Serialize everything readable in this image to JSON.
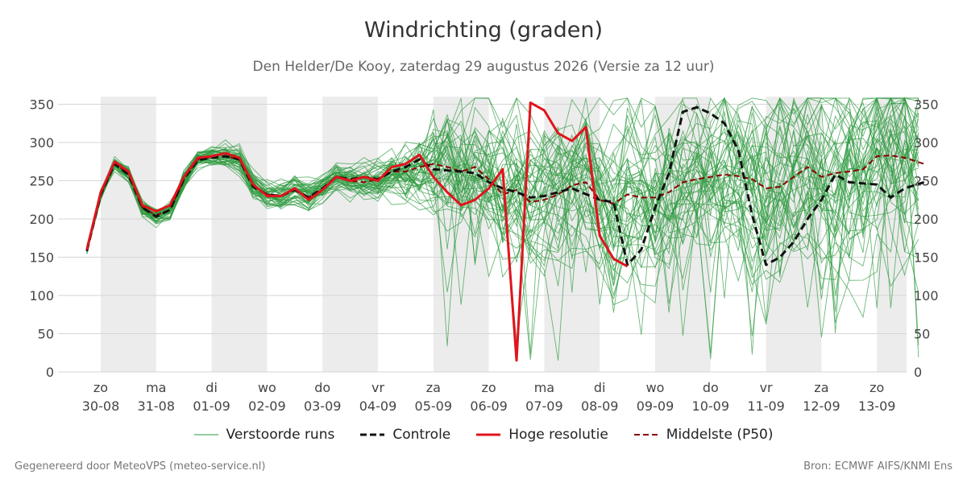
{
  "header": {
    "title": "Windrichting (graden)",
    "subtitle": "Den Helder/De Kooy, zaterdag 29 augustus 2026 (Versie za 12 uur)"
  },
  "footer": {
    "left": "Gegenereerd door MeteoVPS (meteo-service.nl)",
    "right": "Bron: ECMWF AIFS/KNMI Ens"
  },
  "legend": [
    {
      "label": "Verstoorde runs",
      "color": "#2e9a3e",
      "style": "thin"
    },
    {
      "label": "Controle",
      "color": "#111111",
      "style": "dashed"
    },
    {
      "label": "Hoge resolutie",
      "color": "#e0141c",
      "style": "solid"
    },
    {
      "label": "Middelste (P50)",
      "color": "#8b0000",
      "style": "dashed"
    }
  ],
  "chart_data": {
    "type": "line",
    "ylim": [
      0,
      360
    ],
    "yticks": [
      0,
      50,
      100,
      150,
      200,
      250,
      300,
      350
    ],
    "xlim": [
      -0.25,
      14.85
    ],
    "x_unit": "days since 2026-08-30",
    "x_ticks": [
      {
        "day": "zo",
        "date": "30-08"
      },
      {
        "day": "ma",
        "date": "31-08"
      },
      {
        "day": "di",
        "date": "01-09"
      },
      {
        "day": "wo",
        "date": "02-09"
      },
      {
        "day": "do",
        "date": "03-09"
      },
      {
        "day": "vr",
        "date": "04-09"
      },
      {
        "day": "za",
        "date": "05-09"
      },
      {
        "day": "zo",
        "date": "06-09"
      },
      {
        "day": "ma",
        "date": "07-09"
      },
      {
        "day": "di",
        "date": "08-09"
      },
      {
        "day": "wo",
        "date": "09-09"
      },
      {
        "day": "do",
        "date": "10-09"
      },
      {
        "day": "vr",
        "date": "11-09"
      },
      {
        "day": "za",
        "date": "12-09"
      },
      {
        "day": "zo",
        "date": "13-09"
      }
    ],
    "shaded_days": [
      0,
      2,
      4,
      6,
      8,
      10,
      12,
      14
    ],
    "grid": true,
    "legend_position": "bottom",
    "series": [
      {
        "name": "Hoge resolutie",
        "color": "#e0141c",
        "points": [
          [
            -0.25,
            160
          ],
          [
            0,
            235
          ],
          [
            0.25,
            275
          ],
          [
            0.5,
            262
          ],
          [
            0.75,
            218
          ],
          [
            1,
            210
          ],
          [
            1.25,
            218
          ],
          [
            1.5,
            255
          ],
          [
            1.75,
            280
          ],
          [
            2,
            282
          ],
          [
            2.25,
            286
          ],
          [
            2.5,
            280
          ],
          [
            2.75,
            245
          ],
          [
            3,
            230
          ],
          [
            3.25,
            230
          ],
          [
            3.5,
            240
          ],
          [
            3.75,
            225
          ],
          [
            4,
            238
          ],
          [
            4.25,
            255
          ],
          [
            4.5,
            250
          ],
          [
            4.75,
            255
          ],
          [
            5,
            250
          ],
          [
            5.25,
            268
          ],
          [
            5.5,
            272
          ],
          [
            5.75,
            284
          ],
          [
            6,
            255
          ],
          [
            6.25,
            235
          ],
          [
            6.5,
            218
          ],
          [
            6.75,
            225
          ],
          [
            7,
            240
          ],
          [
            7.25,
            265
          ],
          [
            7.5,
            15
          ],
          [
            7.75,
            352
          ],
          [
            8,
            342
          ],
          [
            8.25,
            312
          ],
          [
            8.5,
            302
          ],
          [
            8.75,
            320
          ],
          [
            9,
            178
          ],
          [
            9.25,
            148
          ],
          [
            9.5,
            138
          ]
        ]
      },
      {
        "name": "Controle",
        "color": "#111111",
        "points": [
          [
            -0.25,
            158
          ],
          [
            0,
            232
          ],
          [
            0.25,
            272
          ],
          [
            0.5,
            258
          ],
          [
            0.75,
            215
          ],
          [
            1,
            203
          ],
          [
            1.25,
            212
          ],
          [
            1.5,
            252
          ],
          [
            1.75,
            277
          ],
          [
            2,
            280
          ],
          [
            2.25,
            282
          ],
          [
            2.5,
            278
          ],
          [
            2.75,
            242
          ],
          [
            3,
            232
          ],
          [
            3.25,
            230
          ],
          [
            3.5,
            238
          ],
          [
            3.75,
            228
          ],
          [
            4,
            240
          ],
          [
            4.25,
            255
          ],
          [
            4.5,
            252
          ],
          [
            4.75,
            255
          ],
          [
            5,
            252
          ],
          [
            5.25,
            262
          ],
          [
            5.5,
            268
          ],
          [
            5.75,
            278
          ],
          [
            6,
            265
          ],
          [
            6.5,
            262
          ],
          [
            6.75,
            260
          ],
          [
            7,
            248
          ],
          [
            7.25,
            240
          ],
          [
            7.5,
            235
          ],
          [
            7.75,
            228
          ],
          [
            8,
            230
          ],
          [
            8.5,
            240
          ],
          [
            9,
            225
          ],
          [
            9.25,
            222
          ],
          [
            9.5,
            140
          ],
          [
            9.75,
            160
          ],
          [
            10,
            215
          ],
          [
            10.25,
            260
          ],
          [
            10.5,
            340
          ],
          [
            10.75,
            346
          ],
          [
            11,
            338
          ],
          [
            11.25,
            325
          ],
          [
            11.5,
            290
          ],
          [
            11.75,
            205
          ],
          [
            12,
            140
          ],
          [
            12.25,
            150
          ],
          [
            12.5,
            170
          ],
          [
            12.75,
            200
          ],
          [
            13,
            225
          ],
          [
            13.25,
            258
          ],
          [
            13.5,
            248
          ],
          [
            14,
            245
          ],
          [
            14.25,
            228
          ],
          [
            14.5,
            240
          ],
          [
            14.85,
            248
          ]
        ]
      },
      {
        "name": "Middelste (P50)",
        "color": "#8b0000",
        "points": [
          [
            -0.25,
            160
          ],
          [
            0,
            232
          ],
          [
            0.25,
            272
          ],
          [
            0.5,
            260
          ],
          [
            0.75,
            215
          ],
          [
            1,
            205
          ],
          [
            1.25,
            212
          ],
          [
            1.5,
            252
          ],
          [
            1.75,
            278
          ],
          [
            2,
            281
          ],
          [
            2.25,
            282
          ],
          [
            2.5,
            278
          ],
          [
            2.75,
            244
          ],
          [
            3,
            232
          ],
          [
            3.25,
            230
          ],
          [
            3.5,
            238
          ],
          [
            3.75,
            228
          ],
          [
            4,
            240
          ],
          [
            4.25,
            255
          ],
          [
            4.5,
            250
          ],
          [
            4.75,
            248
          ],
          [
            5,
            252
          ],
          [
            5.25,
            262
          ],
          [
            5.5,
            262
          ],
          [
            5.75,
            268
          ],
          [
            6,
            272
          ],
          [
            6.25,
            268
          ],
          [
            6.5,
            262
          ],
          [
            6.75,
            268
          ],
          [
            7,
            252
          ],
          [
            7.25,
            232
          ],
          [
            7.5,
            238
          ],
          [
            7.75,
            222
          ],
          [
            8,
            225
          ],
          [
            8.25,
            232
          ],
          [
            8.5,
            244
          ],
          [
            8.75,
            248
          ],
          [
            9,
            225
          ],
          [
            9.25,
            220
          ],
          [
            9.5,
            232
          ],
          [
            9.75,
            228
          ],
          [
            10,
            228
          ],
          [
            10.25,
            235
          ],
          [
            10.5,
            248
          ],
          [
            10.75,
            252
          ],
          [
            11,
            255
          ],
          [
            11.25,
            258
          ],
          [
            11.5,
            256
          ],
          [
            11.75,
            252
          ],
          [
            12,
            240
          ],
          [
            12.25,
            242
          ],
          [
            12.5,
            255
          ],
          [
            12.75,
            268
          ],
          [
            13,
            255
          ],
          [
            13.25,
            260
          ],
          [
            13.5,
            262
          ],
          [
            13.75,
            265
          ],
          [
            14,
            282
          ],
          [
            14.25,
            283
          ],
          [
            14.5,
            280
          ],
          [
            14.85,
            272
          ]
        ]
      }
    ]
  }
}
